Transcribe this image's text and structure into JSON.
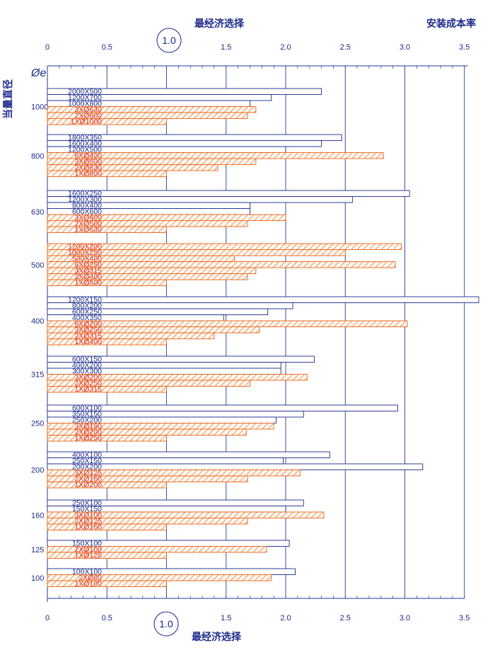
{
  "page": {
    "title_top": "最经济选择",
    "title_bottom": "最经济选择",
    "cost_title": "安装成本率",
    "ylabel": "当量直径",
    "diameter_symbol": "Øe",
    "economic_marker": "1.0"
  },
  "colors": {
    "rect": "#1c2a8c",
    "round": "#e8641a",
    "grid": "#2a3a9a",
    "text_navy": "#1c2a8c",
    "text_red": "#e0301a"
  },
  "chart_data": {
    "type": "bar",
    "orientation": "horizontal",
    "xlabel": "安装成本率",
    "ylabel": "当量直径",
    "xlim": [
      0,
      3.5
    ],
    "xticks": [
      "0",
      "0.5",
      "1.0",
      "1.5",
      "2.0",
      "2.5",
      "3.0",
      "3.5"
    ],
    "legend": "none",
    "grid": true,
    "groups": [
      {
        "diameter": "1000",
        "bars": [
          {
            "label": "2000X500",
            "value": 2.3,
            "kind": "rect"
          },
          {
            "label": "1200X700",
            "value": 1.88,
            "kind": "rect"
          },
          {
            "label": "1000X800",
            "value": 1.7,
            "kind": "rect"
          },
          {
            "label": "3XØ630",
            "value": 1.75,
            "kind": "round"
          },
          {
            "label": "2XØ800",
            "value": 1.68,
            "kind": "round"
          },
          {
            "label": "1XØ1000",
            "value": 1.0,
            "kind": "round"
          }
        ]
      },
      {
        "diameter": "800",
        "bars": [
          {
            "label": "1800X350",
            "value": 2.47,
            "kind": "rect"
          },
          {
            "label": "1600X400",
            "value": 2.3,
            "kind": "rect"
          },
          {
            "label": "1200X500",
            "value": 2.0,
            "kind": "rect"
          },
          {
            "label": "6XØ400",
            "value": 2.82,
            "kind": "round"
          },
          {
            "label": "3XØ500",
            "value": 1.75,
            "kind": "round"
          },
          {
            "label": "2XØ630",
            "value": 1.43,
            "kind": "round"
          },
          {
            "label": "1XØ800",
            "value": 1.0,
            "kind": "round"
          }
        ]
      },
      {
        "diameter": "630",
        "bars": [
          {
            "label": "1600X250",
            "value": 3.04,
            "kind": "rect"
          },
          {
            "label": "1200X300",
            "value": 2.56,
            "kind": "rect"
          },
          {
            "label": "800X400",
            "value": 1.7,
            "kind": "rect"
          },
          {
            "label": "600X600",
            "value": 1.7,
            "kind": "rect"
          },
          {
            "label": "3XØ400",
            "value": 2.0,
            "kind": "round"
          },
          {
            "label": "2XØ500",
            "value": 1.68,
            "kind": "round"
          },
          {
            "label": "1XØ630",
            "value": 1.0,
            "kind": "round"
          }
        ]
      },
      {
        "diameter": "500",
        "bars": [
          {
            "label": "1200X200",
            "value": 2.97,
            "kind": "round"
          },
          {
            "label": "1000X250",
            "value": 2.5,
            "kind": "round"
          },
          {
            "label": "500X400",
            "value": 1.57,
            "kind": "round"
          },
          {
            "label": "6XØ250",
            "value": 2.92,
            "kind": "round"
          },
          {
            "label": "3XØ315",
            "value": 1.75,
            "kind": "round"
          },
          {
            "label": "2XØ400",
            "value": 1.68,
            "kind": "round"
          },
          {
            "label": "1XØ500",
            "value": 1.0,
            "kind": "round"
          }
        ]
      },
      {
        "diameter": "400",
        "bars": [
          {
            "label": "1200X150",
            "value": 3.62,
            "kind": "rect"
          },
          {
            "label": "800X200",
            "value": 2.06,
            "kind": "rect"
          },
          {
            "label": "600X250",
            "value": 1.85,
            "kind": "rect"
          },
          {
            "label": "400X350",
            "value": 1.48,
            "kind": "rect"
          },
          {
            "label": "6XØ200",
            "value": 3.02,
            "kind": "round"
          },
          {
            "label": "3XØ250",
            "value": 1.78,
            "kind": "round"
          },
          {
            "label": "2XØ315",
            "value": 1.4,
            "kind": "round"
          },
          {
            "label": "1XØ400",
            "value": 1.0,
            "kind": "round"
          }
        ]
      },
      {
        "diameter": "315",
        "bars": [
          {
            "label": "600X150",
            "value": 2.24,
            "kind": "rect"
          },
          {
            "label": "400X200",
            "value": 1.96,
            "kind": "rect"
          },
          {
            "label": "300X300",
            "value": 1.96,
            "kind": "rect"
          },
          {
            "label": "3XØ200",
            "value": 2.18,
            "kind": "round"
          },
          {
            "label": "2XØ250",
            "value": 1.7,
            "kind": "round"
          },
          {
            "label": "1XØ315",
            "value": 1.0,
            "kind": "round"
          }
        ]
      },
      {
        "diameter": "250",
        "bars": [
          {
            "label": "600X100",
            "value": 2.94,
            "kind": "rect"
          },
          {
            "label": "350X150",
            "value": 2.15,
            "kind": "rect"
          },
          {
            "label": "250X200",
            "value": 1.92,
            "kind": "rect"
          },
          {
            "label": "3XØ160",
            "value": 1.9,
            "kind": "round"
          },
          {
            "label": "2XØ200",
            "value": 1.67,
            "kind": "round"
          },
          {
            "label": "1XØ250",
            "value": 1.0,
            "kind": "round"
          }
        ]
      },
      {
        "diameter": "200",
        "bars": [
          {
            "label": "400X100",
            "value": 2.37,
            "kind": "rect"
          },
          {
            "label": "250X150",
            "value": 1.98,
            "kind": "rect"
          },
          {
            "label": "200X200",
            "value": 3.15,
            "kind": "rect"
          },
          {
            "label": "3XØ125",
            "value": 2.12,
            "kind": "round"
          },
          {
            "label": "2XØ160",
            "value": 1.68,
            "kind": "round"
          },
          {
            "label": "1XØ200",
            "value": 1.0,
            "kind": "round"
          }
        ]
      },
      {
        "diameter": "160",
        "bars": [
          {
            "label": "250X100",
            "value": 2.15,
            "kind": "rect"
          },
          {
            "label": "150X150",
            "value": 2.0,
            "kind": "rect"
          },
          {
            "label": "3XØ100",
            "value": 2.32,
            "kind": "round"
          },
          {
            "label": "2XØ125",
            "value": 1.68,
            "kind": "round"
          },
          {
            "label": "1XØ160",
            "value": 1.0,
            "kind": "round"
          }
        ]
      },
      {
        "diameter": "125",
        "bars": [
          {
            "label": "150X100",
            "value": 2.03,
            "kind": "rect"
          },
          {
            "label": "2XØ100",
            "value": 1.84,
            "kind": "round"
          },
          {
            "label": "1XØ125",
            "value": 1.0,
            "kind": "round"
          }
        ]
      },
      {
        "diameter": "100",
        "bars": [
          {
            "label": "100X100",
            "value": 2.08,
            "kind": "rect"
          },
          {
            "label": "2XØ80",
            "value": 1.88,
            "kind": "round"
          },
          {
            "label": "1XØ100",
            "value": 1.0,
            "kind": "round"
          }
        ]
      }
    ]
  }
}
